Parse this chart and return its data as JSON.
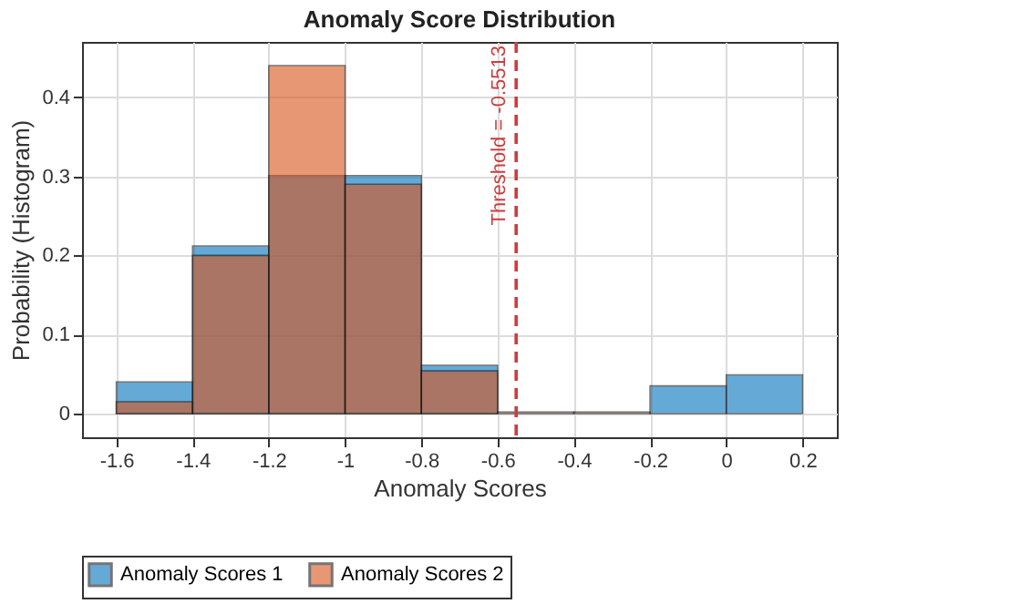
{
  "chart_data": {
    "type": "histogram",
    "title": "Anomaly Score Distribution",
    "xlabel": "Anomaly Scores",
    "ylabel": "Probability (Histogram)",
    "bins": [
      -1.6,
      -1.4,
      -1.2,
      -1.0,
      -0.8,
      -0.6,
      -0.4,
      -0.2,
      0,
      0.2
    ],
    "series": [
      {
        "name": "Anomaly Scores 1",
        "color": "#0072bd",
        "values": [
          0.04,
          0.212,
          0.301,
          0.301,
          0.061,
          null,
          null,
          0.035,
          0.049
        ]
      },
      {
        "name": "Anomaly Scores 2",
        "color": "#d95319",
        "values": [
          0.015,
          0.2,
          0.44,
          0.29,
          0.054,
          0.002,
          0.002,
          null,
          null
        ]
      }
    ],
    "xlim": [
      -1.69,
      0.29
    ],
    "xticks": [
      -1.6,
      -1.4,
      -1.2,
      {
        "value": -1,
        "label": "-1"
      },
      -0.8,
      -0.6,
      -0.4,
      -0.2,
      {
        "value": 0,
        "label": "0"
      },
      0.2
    ],
    "ylim": [
      -0.03,
      0.47
    ],
    "yticks": [
      {
        "value": 0,
        "label": "0"
      },
      0.1,
      0.2,
      0.3,
      0.4
    ],
    "ref_lines": [
      {
        "axis": "x",
        "value": -0.5513,
        "label": "Threshold = -0.5513",
        "color": "#cd3c3c",
        "line_style": "dashed"
      }
    ],
    "grid": true,
    "legend": "bottom"
  }
}
